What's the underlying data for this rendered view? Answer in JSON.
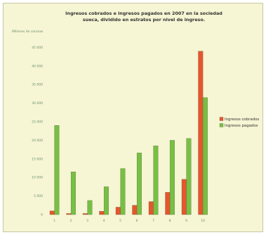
{
  "chart_data": {
    "type": "bar",
    "title_lines": [
      "Ingresos cobrados e ingresos pagados en 2007 en la sociedad",
      "sueca, dividido en estratos por nivel de ingreso."
    ],
    "ylabel": "Millones de coronas",
    "categories": [
      "1",
      "2",
      "3",
      "4",
      "5",
      "6",
      "7",
      "8",
      "9",
      "10"
    ],
    "ylim": [
      0,
      50000
    ],
    "yticks": [
      "0",
      "5 000",
      "10 000",
      "15 000",
      "20 000",
      "25 000",
      "30 000",
      "35 000",
      "40 000",
      "45 000"
    ],
    "grid": false,
    "legend_position": "right",
    "series": [
      {
        "name": "Ingresos cobrados",
        "color": "#e6562e",
        "values": [
          1000,
          300,
          300,
          900,
          2000,
          2500,
          3500,
          6000,
          9500,
          44000
        ]
      },
      {
        "name": "Ingresos pagados",
        "color": "#76c043",
        "values": [
          24000,
          11500,
          3800,
          7500,
          12400,
          16600,
          18500,
          20000,
          20500,
          31500
        ]
      }
    ]
  }
}
